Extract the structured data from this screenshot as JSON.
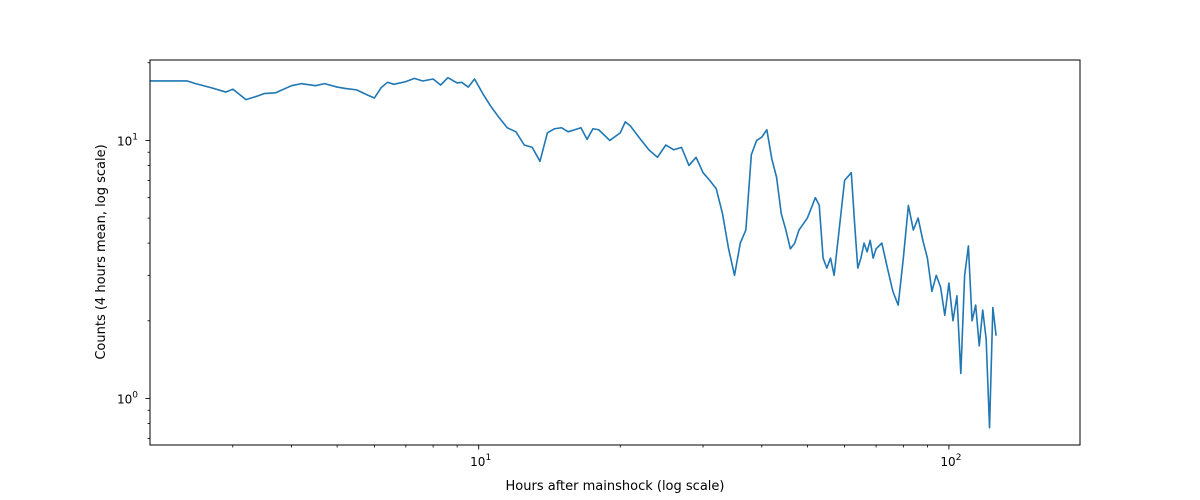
{
  "chart_data": {
    "type": "line",
    "title": "",
    "xlabel": "Hours after mainshock (log scale)",
    "ylabel": "Counts (4 hours mean, log scale)",
    "xscale": "log",
    "yscale": "log",
    "xlim": [
      2.0,
      190
    ],
    "ylim": [
      0.66,
      20.5
    ],
    "grid": false,
    "legend": "none",
    "line_color": "#1f77b4",
    "x_ticks": [
      {
        "value": 10,
        "label": "10",
        "sup": "1"
      },
      {
        "value": 100,
        "label": "10",
        "sup": "2"
      }
    ],
    "y_ticks": [
      {
        "value": 1,
        "label": "10",
        "sup": "0"
      },
      {
        "value": 10,
        "label": "10",
        "sup": "1"
      }
    ],
    "series": [
      {
        "x": [
          2.0,
          2.4,
          2.5,
          2.7,
          2.9,
          3.0,
          3.2,
          3.4,
          3.5,
          3.7,
          4.0,
          4.2,
          4.5,
          4.7,
          5.0,
          5.2,
          5.5,
          5.8,
          6.0,
          6.2,
          6.4,
          6.6,
          7.0,
          7.3,
          7.6,
          8.0,
          8.3,
          8.6,
          9.0,
          9.2,
          9.5,
          9.8,
          10.2,
          10.6,
          11.0,
          11.5,
          12.0,
          12.5,
          13.0,
          13.5,
          14.0,
          14.5,
          15.0,
          15.5,
          16.0,
          16.5,
          17.0,
          17.5,
          18.0,
          19.0,
          20.0,
          20.5,
          21.0,
          22.0,
          23.0,
          24.0,
          25.0,
          26.0,
          27.0,
          28.0,
          29.0,
          30.0,
          31.0,
          32.0,
          33.0,
          34.0,
          35.0,
          36.0,
          37.0,
          38.0,
          39.0,
          40.0,
          41.0,
          42.0,
          43.0,
          44.0,
          45.0,
          46.0,
          47.0,
          48.0,
          50.0,
          52.0,
          53.0,
          54.0,
          55.0,
          56.0,
          57.0,
          58.0,
          59.0,
          60.0,
          62.0,
          63.0,
          64.0,
          65.0,
          66.0,
          67.0,
          68.0,
          69.0,
          70.0,
          72.0,
          74.0,
          76.0,
          78.0,
          80.0,
          82.0,
          84.0,
          86.0,
          88.0,
          90.0,
          92.0,
          94.0,
          96.0,
          98.0,
          100.0,
          102.0,
          104.0,
          106.0,
          108.0,
          110.0,
          112.0,
          114.0,
          116.0,
          118.0,
          120.0,
          122.0,
          124.0,
          126.0
        ],
        "y": [
          17.0,
          17.0,
          16.6,
          16.0,
          15.4,
          15.8,
          14.4,
          14.9,
          15.2,
          15.3,
          16.3,
          16.6,
          16.3,
          16.6,
          16.1,
          15.9,
          15.7,
          15.0,
          14.6,
          16.0,
          16.8,
          16.5,
          16.9,
          17.4,
          17.0,
          17.3,
          16.4,
          17.5,
          16.7,
          16.8,
          16.1,
          17.3,
          15.2,
          13.6,
          12.4,
          11.2,
          10.8,
          9.6,
          9.4,
          8.3,
          10.7,
          11.1,
          11.2,
          10.8,
          11.0,
          11.2,
          10.1,
          11.1,
          11.0,
          10.0,
          10.7,
          11.8,
          11.4,
          10.2,
          9.2,
          8.6,
          9.6,
          9.2,
          9.4,
          8.0,
          8.6,
          7.5,
          7.0,
          6.5,
          5.2,
          3.8,
          3.0,
          4.0,
          4.5,
          8.8,
          10.0,
          10.3,
          11.0,
          8.5,
          7.2,
          5.2,
          4.5,
          3.8,
          4.0,
          4.5,
          5.0,
          6.0,
          5.6,
          3.5,
          3.2,
          3.5,
          3.0,
          4.0,
          5.3,
          7.0,
          7.5,
          4.8,
          3.2,
          3.5,
          4.0,
          3.7,
          4.1,
          3.5,
          3.8,
          4.0,
          3.2,
          2.6,
          2.3,
          3.5,
          5.6,
          4.5,
          5.0,
          4.1,
          3.5,
          2.6,
          3.0,
          2.7,
          2.1,
          2.8,
          2.0,
          2.5,
          1.25,
          3.0,
          3.9,
          2.0,
          2.3,
          1.6,
          2.2,
          1.7,
          0.77,
          2.25,
          1.75
        ]
      }
    ]
  }
}
